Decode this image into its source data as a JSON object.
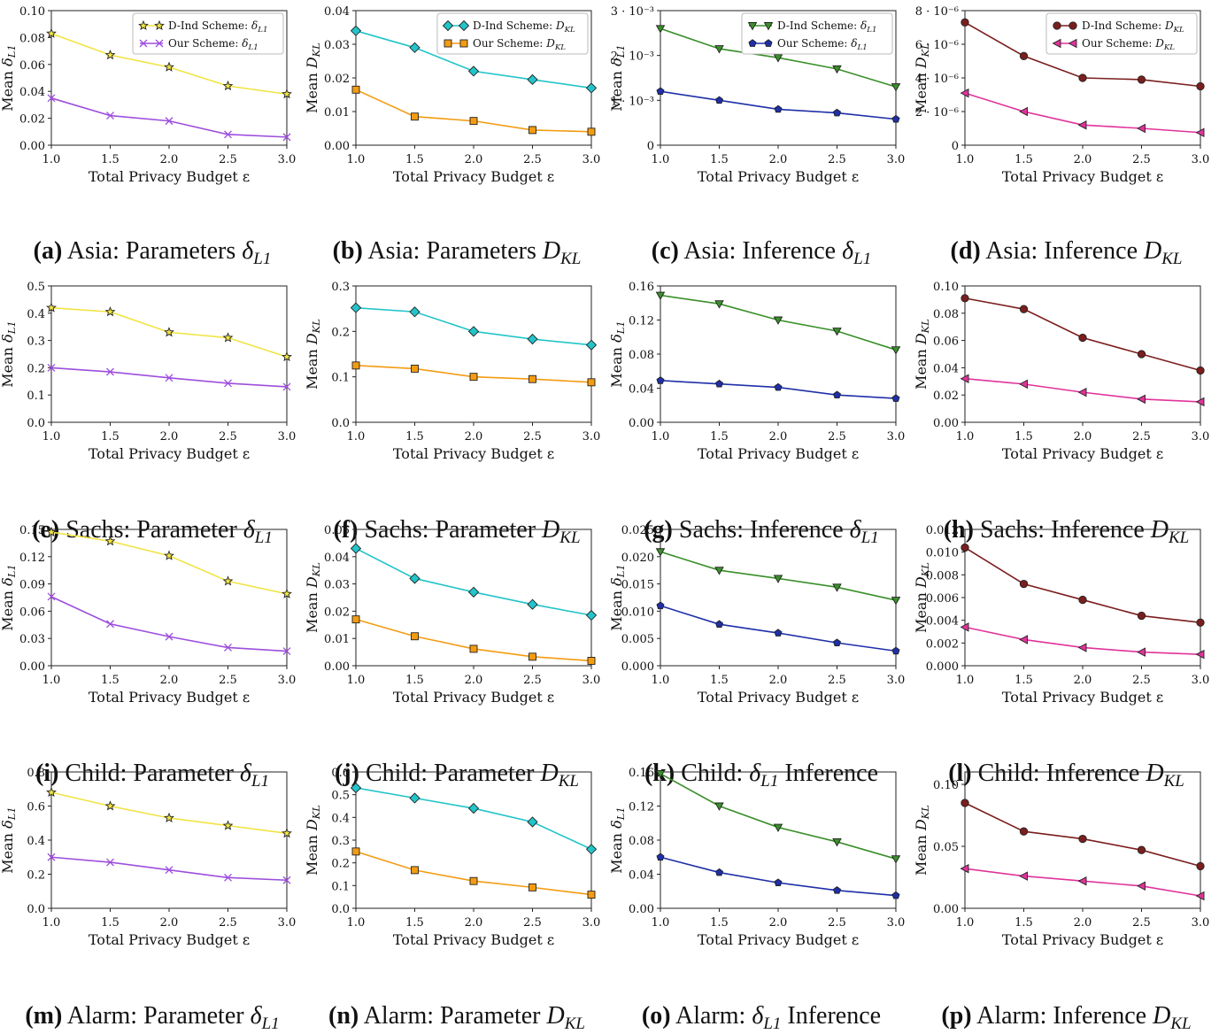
{
  "common": {
    "xlabel": "Total Privacy Budget ε",
    "xticks": [
      "1.0",
      "1.5",
      "2.0",
      "2.5",
      "3.0"
    ],
    "x": [
      1.0,
      1.5,
      2.0,
      2.5,
      3.0
    ]
  },
  "styles": {
    "d_ind_param": {
      "color": "#f0e442",
      "marker": "star"
    },
    "ours_param": {
      "color": "#9d4edd",
      "marker": "x"
    },
    "d_ind_param_kl": {
      "color": "#22c4c9",
      "marker": "diamond"
    },
    "ours_param_kl": {
      "color": "#f39c12",
      "marker": "square"
    },
    "d_ind_inf": {
      "color": "#3a8f2a",
      "marker": "triangle-down"
    },
    "ours_inf": {
      "color": "#1f2fa8",
      "marker": "pentagon"
    },
    "d_ind_inf_kl": {
      "color": "#7b1e1e",
      "marker": "circle"
    },
    "ours_inf_kl": {
      "color": "#e0339a",
      "marker": "triangle-left"
    }
  },
  "chart_data": [
    {
      "id": "a",
      "type": "line",
      "caption_tag": "(a)",
      "caption_text": "Asia: Parameters ",
      "caption_sym": "δ",
      "caption_sub": "L1",
      "ylabel": "Mean δL1",
      "ylim": [
        0,
        0.1
      ],
      "yticks": [
        "0.00",
        "0.02",
        "0.04",
        "0.06",
        "0.08",
        "0.10"
      ],
      "ytick_values": [
        0,
        0.02,
        0.04,
        0.06,
        0.08,
        0.1
      ],
      "legend": [
        "D-Ind Scheme: δL1",
        "Our Scheme: δL1"
      ],
      "series": [
        {
          "name": "D-Ind Scheme",
          "style": "d_ind_param",
          "values": [
            0.083,
            0.067,
            0.058,
            0.044,
            0.038
          ]
        },
        {
          "name": "Our Scheme",
          "style": "ours_param",
          "values": [
            0.035,
            0.022,
            0.018,
            0.008,
            0.006
          ]
        }
      ]
    },
    {
      "id": "b",
      "type": "line",
      "caption_tag": "(b)",
      "caption_text": "Asia: Parameters ",
      "caption_sym": "D",
      "caption_sub": "KL",
      "ylabel": "Mean DKL",
      "ylim": [
        0,
        0.04
      ],
      "yticks": [
        "0.00",
        "0.01",
        "0.02",
        "0.03",
        "0.04"
      ],
      "ytick_values": [
        0,
        0.01,
        0.02,
        0.03,
        0.04
      ],
      "legend": [
        "D-Ind Scheme: DKL",
        "Our Scheme: DKL"
      ],
      "series": [
        {
          "name": "D-Ind Scheme",
          "style": "d_ind_param_kl",
          "values": [
            0.034,
            0.029,
            0.022,
            0.0195,
            0.017
          ]
        },
        {
          "name": "Our Scheme",
          "style": "ours_param_kl",
          "values": [
            0.0165,
            0.0085,
            0.0072,
            0.0045,
            0.004
          ]
        }
      ]
    },
    {
      "id": "c",
      "type": "line",
      "caption_tag": "(c)",
      "caption_text": "Asia: Inference ",
      "caption_sym": "δ",
      "caption_sub": "L1",
      "ylabel": "Mean δL1",
      "ylim": [
        0,
        0.003
      ],
      "yticks": [
        "0",
        "1 · 10⁻³",
        "2 · 10⁻³",
        "3 · 10⁻³"
      ],
      "ytick_values": [
        0,
        0.001,
        0.002,
        0.003
      ],
      "legend": [
        "D-Ind Scheme: δL1",
        "Our Scheme: δL1"
      ],
      "series": [
        {
          "name": "D-Ind Scheme",
          "style": "d_ind_inf",
          "values": [
            0.0026,
            0.00215,
            0.00195,
            0.0017,
            0.0013
          ]
        },
        {
          "name": "Our Scheme",
          "style": "ours_inf",
          "values": [
            0.0012,
            0.001,
            0.0008,
            0.00072,
            0.00058
          ]
        }
      ]
    },
    {
      "id": "d",
      "type": "line",
      "caption_tag": "(d)",
      "caption_text": "Asia: Inference ",
      "caption_sym": "D",
      "caption_sub": "KL",
      "ylabel": "Mean DKL",
      "ylim": [
        0,
        8e-06
      ],
      "yticks": [
        "0",
        "2 · 10⁻⁶",
        "4 · 10⁻⁶",
        "6 · 10⁻⁶",
        "8 · 10⁻⁶"
      ],
      "ytick_values": [
        0,
        2e-06,
        4e-06,
        6e-06,
        8e-06
      ],
      "legend": [
        "D-Ind Scheme: DKL",
        "Our Scheme: DKL"
      ],
      "series": [
        {
          "name": "D-Ind Scheme",
          "style": "d_ind_inf_kl",
          "values": [
            7.3e-06,
            5.3e-06,
            4e-06,
            3.9e-06,
            3.5e-06
          ]
        },
        {
          "name": "Our Scheme",
          "style": "ours_inf_kl",
          "values": [
            3.1e-06,
            2e-06,
            1.2e-06,
            1e-06,
            7.5e-07
          ]
        }
      ]
    },
    {
      "id": "e",
      "type": "line",
      "caption_tag": "(e)",
      "caption_text": "Sachs: Parameter ",
      "caption_sym": "δ",
      "caption_sub": "L1",
      "ylabel": "Mean δL1",
      "ylim": [
        0,
        0.5
      ],
      "yticks": [
        "0.0",
        "0.1",
        "0.2",
        "0.3",
        "0.4",
        "0.5"
      ],
      "ytick_values": [
        0,
        0.1,
        0.2,
        0.3,
        0.4,
        0.5
      ],
      "legend": [],
      "series": [
        {
          "name": "D-Ind Scheme",
          "style": "d_ind_param",
          "values": [
            0.42,
            0.405,
            0.33,
            0.31,
            0.24
          ]
        },
        {
          "name": "Our Scheme",
          "style": "ours_param",
          "values": [
            0.2,
            0.185,
            0.163,
            0.143,
            0.13
          ]
        }
      ]
    },
    {
      "id": "f",
      "type": "line",
      "caption_tag": "(f)",
      "caption_text": "Sachs: Parameter ",
      "caption_sym": "D",
      "caption_sub": "KL",
      "ylabel": "Mean DKL",
      "ylim": [
        0,
        0.3
      ],
      "yticks": [
        "0.0",
        "0.1",
        "0.2",
        "0.3"
      ],
      "ytick_values": [
        0,
        0.1,
        0.2,
        0.3
      ],
      "legend": [],
      "series": [
        {
          "name": "D-Ind Scheme",
          "style": "d_ind_param_kl",
          "values": [
            0.252,
            0.243,
            0.2,
            0.183,
            0.17
          ]
        },
        {
          "name": "Our Scheme",
          "style": "ours_param_kl",
          "values": [
            0.125,
            0.118,
            0.1,
            0.095,
            0.088
          ]
        }
      ]
    },
    {
      "id": "g",
      "type": "line",
      "caption_tag": "(g)",
      "caption_text": "Sachs: Inference ",
      "caption_sym": "δ",
      "caption_sub": "L1",
      "ylabel": "Mean δL1",
      "ylim": [
        0,
        0.16
      ],
      "yticks": [
        "0.00",
        "0.04",
        "0.08",
        "0.12",
        "0.16"
      ],
      "ytick_values": [
        0,
        0.04,
        0.08,
        0.12,
        0.16
      ],
      "legend": [],
      "series": [
        {
          "name": "D-Ind Scheme",
          "style": "d_ind_inf",
          "values": [
            0.149,
            0.139,
            0.12,
            0.107,
            0.085
          ]
        },
        {
          "name": "Our Scheme",
          "style": "ours_inf",
          "values": [
            0.049,
            0.045,
            0.041,
            0.032,
            0.028
          ]
        }
      ]
    },
    {
      "id": "h",
      "type": "line",
      "caption_tag": "(h)",
      "caption_text": "Sachs: Inference ",
      "caption_sym": "D",
      "caption_sub": "KL",
      "ylabel": "Mean DKL",
      "ylim": [
        0,
        0.1
      ],
      "yticks": [
        "0.00",
        "0.02",
        "0.04",
        "0.06",
        "0.08",
        "0.10"
      ],
      "ytick_values": [
        0,
        0.02,
        0.04,
        0.06,
        0.08,
        0.1
      ],
      "legend": [],
      "series": [
        {
          "name": "D-Ind Scheme",
          "style": "d_ind_inf_kl",
          "values": [
            0.091,
            0.083,
            0.062,
            0.05,
            0.038
          ]
        },
        {
          "name": "Our Scheme",
          "style": "ours_inf_kl",
          "values": [
            0.032,
            0.028,
            0.022,
            0.017,
            0.015
          ]
        }
      ]
    },
    {
      "id": "i",
      "type": "line",
      "caption_tag": "(i)",
      "caption_text": "Child: Parameter ",
      "caption_sym": "δ",
      "caption_sub": "L1",
      "ylabel": "Mean δL1",
      "ylim": [
        0,
        0.15
      ],
      "yticks": [
        "0.00",
        "0.03",
        "0.06",
        "0.09",
        "0.12",
        "0.15"
      ],
      "ytick_values": [
        0,
        0.03,
        0.06,
        0.09,
        0.12,
        0.15
      ],
      "legend": [],
      "series": [
        {
          "name": "D-Ind Scheme",
          "style": "d_ind_param",
          "values": [
            0.147,
            0.137,
            0.121,
            0.093,
            0.079
          ]
        },
        {
          "name": "Our Scheme",
          "style": "ours_param",
          "values": [
            0.076,
            0.046,
            0.032,
            0.02,
            0.016
          ]
        }
      ]
    },
    {
      "id": "j",
      "type": "line",
      "caption_tag": "(j)",
      "caption_text": "Child: Parameter ",
      "caption_sym": "D",
      "caption_sub": "KL",
      "ylabel": "Mean DKL",
      "ylim": [
        0,
        0.05
      ],
      "yticks": [
        "0.00",
        "0.01",
        "0.02",
        "0.03",
        "0.04",
        "0.05"
      ],
      "ytick_values": [
        0,
        0.01,
        0.02,
        0.03,
        0.04,
        0.05
      ],
      "legend": [],
      "series": [
        {
          "name": "D-Ind Scheme",
          "style": "d_ind_param_kl",
          "values": [
            0.043,
            0.032,
            0.027,
            0.0225,
            0.0185
          ]
        },
        {
          "name": "Our Scheme",
          "style": "ours_param_kl",
          "values": [
            0.017,
            0.0108,
            0.0062,
            0.0033,
            0.0018
          ]
        }
      ]
    },
    {
      "id": "k",
      "type": "line",
      "caption_tag": "(k)",
      "caption_text": "Child: ",
      "caption_sym": "δ",
      "caption_sub": "L1",
      "caption_after": " Inference",
      "ylabel": "Mean δL1",
      "ylim": [
        0,
        0.025
      ],
      "yticks": [
        "0.000",
        "0.005",
        "0.010",
        "0.015",
        "0.020",
        "0.025"
      ],
      "ytick_values": [
        0,
        0.005,
        0.01,
        0.015,
        0.02,
        0.025
      ],
      "legend": [],
      "series": [
        {
          "name": "D-Ind Scheme",
          "style": "d_ind_inf",
          "values": [
            0.0209,
            0.0175,
            0.016,
            0.0144,
            0.012
          ]
        },
        {
          "name": "Our Scheme",
          "style": "ours_inf",
          "values": [
            0.011,
            0.0076,
            0.006,
            0.0042,
            0.0027
          ]
        }
      ]
    },
    {
      "id": "l",
      "type": "line",
      "caption_tag": "(l)",
      "caption_text": "Child: Inference ",
      "caption_sym": "D",
      "caption_sub": "KL",
      "ylabel": "Mean DKL",
      "ylim": [
        0,
        0.012
      ],
      "yticks": [
        "0.000",
        "0.002",
        "0.004",
        "0.006",
        "0.008",
        "0.010",
        "0.012"
      ],
      "ytick_values": [
        0,
        0.002,
        0.004,
        0.006,
        0.008,
        0.01,
        0.012
      ],
      "legend": [],
      "series": [
        {
          "name": "D-Ind Scheme",
          "style": "d_ind_inf_kl",
          "values": [
            0.0104,
            0.0072,
            0.0058,
            0.0044,
            0.0038
          ]
        },
        {
          "name": "Our Scheme",
          "style": "ours_inf_kl",
          "values": [
            0.0034,
            0.0023,
            0.0016,
            0.0012,
            0.001
          ]
        }
      ]
    },
    {
      "id": "m",
      "type": "line",
      "caption_tag": "(m)",
      "caption_text": "Alarm: Parameter ",
      "caption_sym": "δ",
      "caption_sub": "L1",
      "ylabel": "Mean δL1",
      "ylim": [
        0,
        0.8
      ],
      "yticks": [
        "0.0",
        "0.2",
        "0.4",
        "0.6",
        "0.8"
      ],
      "ytick_values": [
        0,
        0.2,
        0.4,
        0.6,
        0.8
      ],
      "legend": [],
      "series": [
        {
          "name": "D-Ind Scheme",
          "style": "d_ind_param",
          "values": [
            0.68,
            0.6,
            0.53,
            0.485,
            0.44
          ]
        },
        {
          "name": "Our Scheme",
          "style": "ours_param",
          "values": [
            0.3,
            0.27,
            0.225,
            0.18,
            0.165
          ]
        }
      ]
    },
    {
      "id": "n",
      "type": "line",
      "caption_tag": "(n)",
      "caption_text": "Alarm: Parameter ",
      "caption_sym": "D",
      "caption_sub": "KL",
      "ylabel": "Mean DKL",
      "ylim": [
        0,
        0.6
      ],
      "yticks": [
        "0.0",
        "0.1",
        "0.2",
        "0.3",
        "0.4",
        "0.5",
        "0.6"
      ],
      "ytick_values": [
        0,
        0.1,
        0.2,
        0.3,
        0.4,
        0.5,
        0.6
      ],
      "legend": [],
      "series": [
        {
          "name": "D-Ind Scheme",
          "style": "d_ind_param_kl",
          "values": [
            0.53,
            0.485,
            0.44,
            0.38,
            0.26
          ]
        },
        {
          "name": "Our Scheme",
          "style": "ours_param_kl",
          "values": [
            0.25,
            0.168,
            0.12,
            0.092,
            0.06
          ]
        }
      ]
    },
    {
      "id": "o",
      "type": "line",
      "caption_tag": "(o)",
      "caption_text": "Alarm: ",
      "caption_sym": "δ",
      "caption_sub": "L1",
      "caption_after": " Inference",
      "ylabel": "Mean δL1",
      "ylim": [
        0,
        0.16
      ],
      "yticks": [
        "0.00",
        "0.04",
        "0.08",
        "0.12",
        "0.16"
      ],
      "ytick_values": [
        0,
        0.04,
        0.08,
        0.12,
        0.16
      ],
      "legend": [],
      "series": [
        {
          "name": "D-Ind Scheme",
          "style": "d_ind_inf",
          "values": [
            0.158,
            0.12,
            0.095,
            0.078,
            0.058
          ]
        },
        {
          "name": "Our Scheme",
          "style": "ours_inf",
          "values": [
            0.06,
            0.042,
            0.03,
            0.021,
            0.015
          ]
        }
      ]
    },
    {
      "id": "p",
      "type": "line",
      "caption_tag": "(p)",
      "caption_text": "Alarm: Inference ",
      "caption_sym": "D",
      "caption_sub": "KL",
      "ylabel": "Mean DKL",
      "ylim": [
        0,
        0.11
      ],
      "yticks": [
        "0.00",
        "0.05",
        "0.10"
      ],
      "ytick_values": [
        0,
        0.05,
        0.1
      ],
      "legend": [],
      "series": [
        {
          "name": "D-Ind Scheme",
          "style": "d_ind_inf_kl",
          "values": [
            0.085,
            0.062,
            0.056,
            0.047,
            0.034
          ]
        },
        {
          "name": "Our Scheme",
          "style": "ours_inf_kl",
          "values": [
            0.032,
            0.026,
            0.022,
            0.018,
            0.01
          ]
        }
      ]
    }
  ]
}
